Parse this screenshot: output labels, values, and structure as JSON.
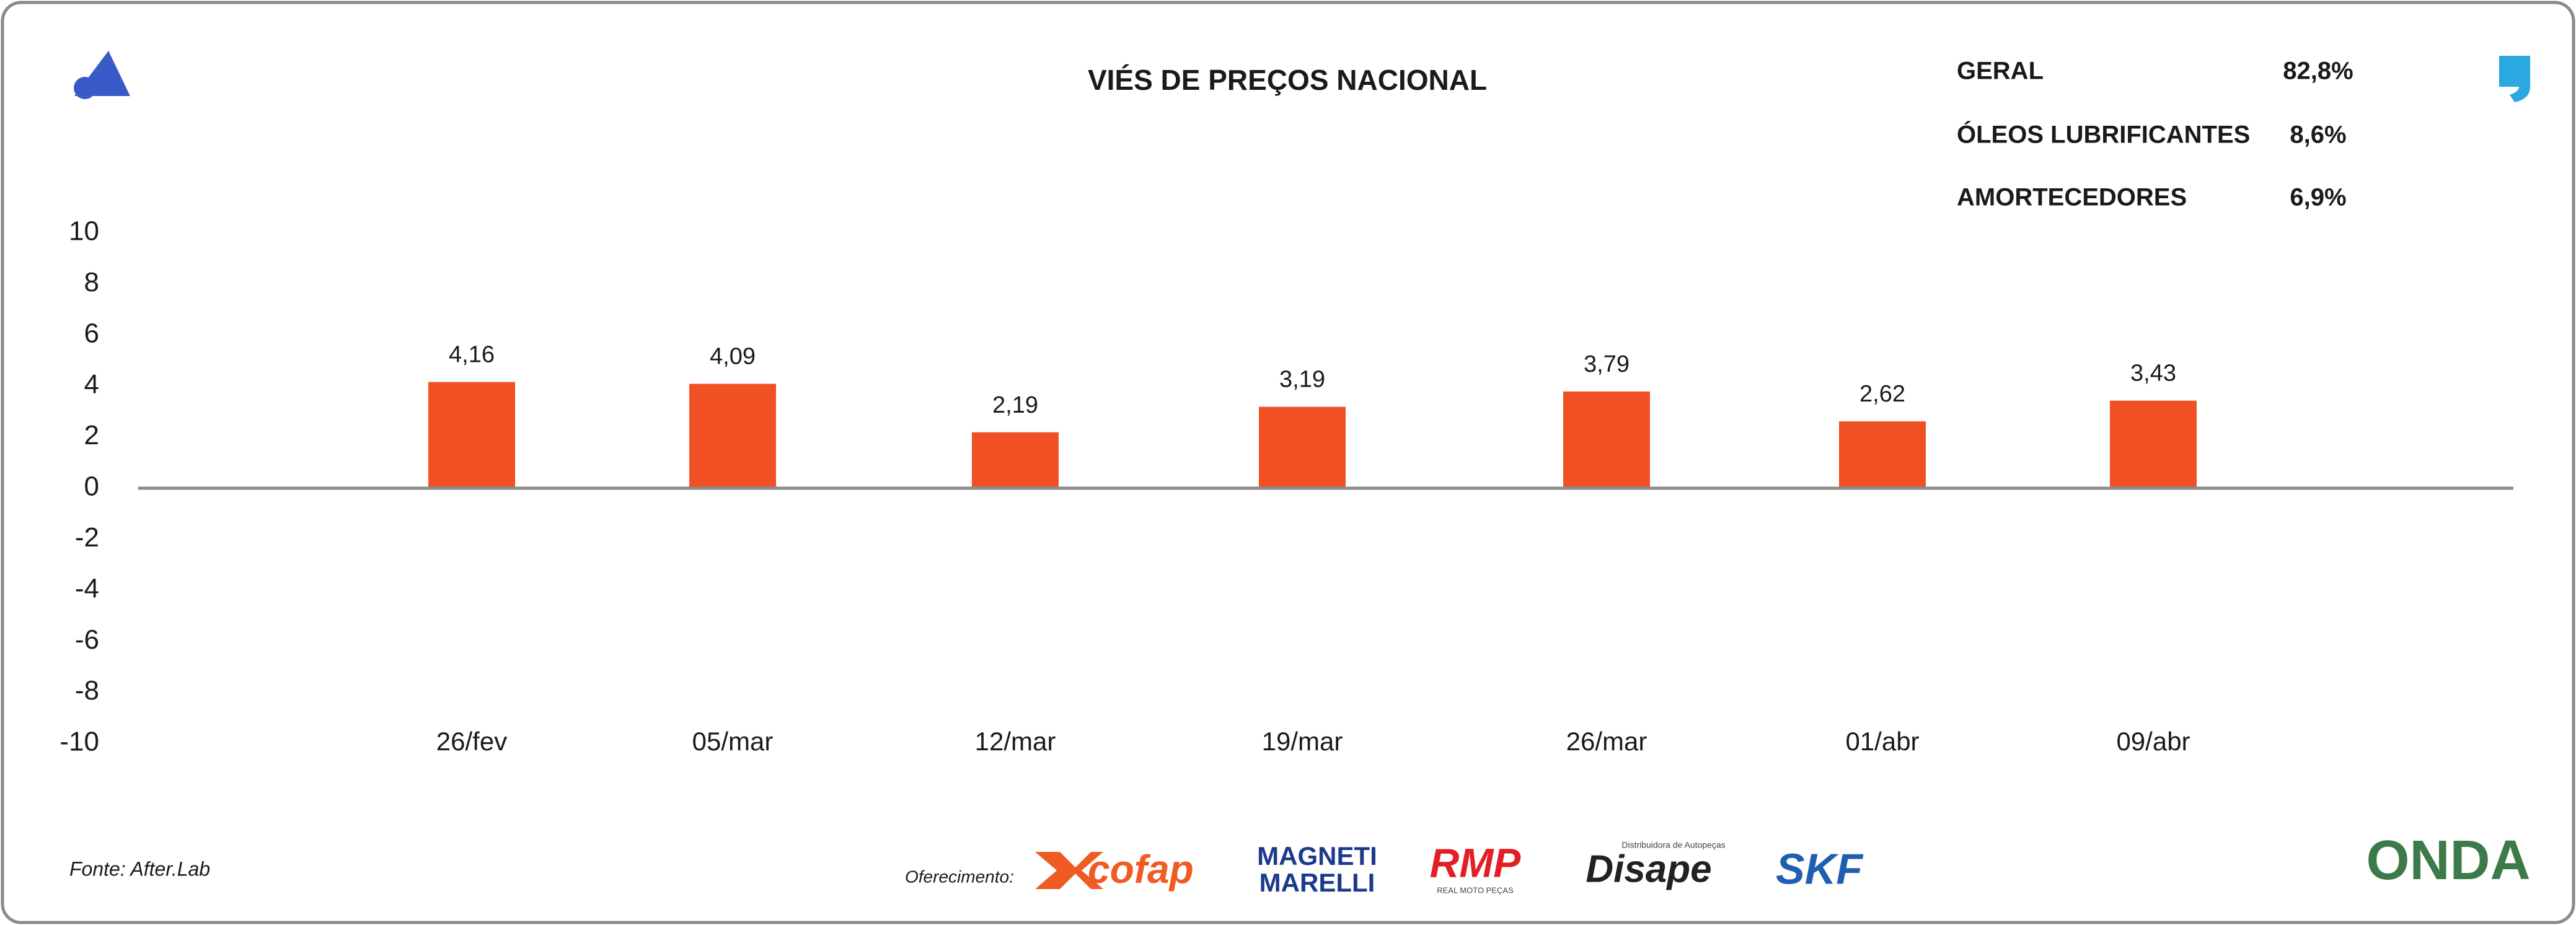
{
  "chart_data": {
    "type": "bar",
    "title": "VIÉS DE PREÇOS NACIONAL",
    "categories": [
      "26/fev",
      "05/mar",
      "12/mar",
      "19/mar",
      "26/mar",
      "01/abr",
      "09/abr"
    ],
    "values": [
      4.16,
      4.09,
      2.19,
      3.19,
      3.79,
      2.62,
      3.43
    ],
    "value_labels": [
      "4,16",
      "4,09",
      "2,19",
      "3,19",
      "3,79",
      "2,62",
      "3,43"
    ],
    "color": "#f05023",
    "ylim": [
      -10,
      10
    ],
    "yticks": [
      10,
      8,
      6,
      4,
      2,
      0,
      -2,
      -4,
      -6,
      -8,
      -10
    ]
  },
  "stats": [
    {
      "label": "GERAL",
      "value": "82,8%"
    },
    {
      "label": "ÓLEOS LUBRIFICANTES",
      "value": "8,6%"
    },
    {
      "label": "AMORTECEDORES",
      "value": "6,9%"
    }
  ],
  "footer": {
    "source": "Fonte: After.Lab",
    "sponsor_label": "Oferecimento:",
    "sponsors": [
      "cofap",
      "MAGNETI",
      "MARELLI",
      "RMP",
      "REAL MOTO PEÇAS",
      "Disape",
      "Distribuidora de Autopeças",
      "SKF",
      "ONDA"
    ]
  }
}
